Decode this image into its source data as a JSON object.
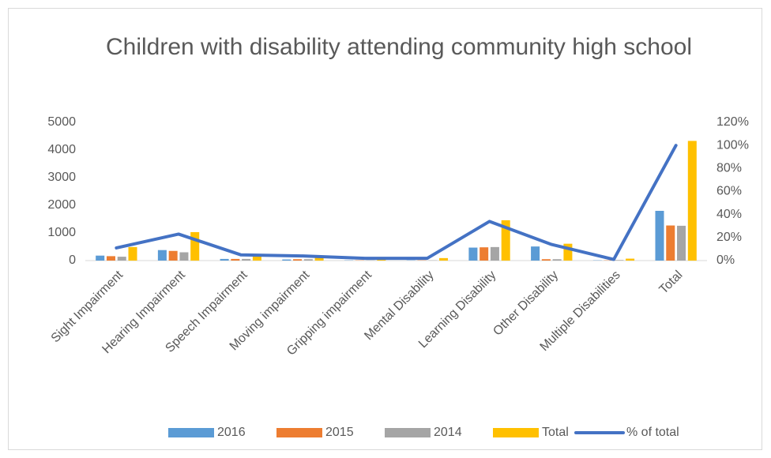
{
  "chart_data": {
    "type": "bar",
    "title": "Children with disability attending community high school",
    "categories": [
      "Sight Impairment",
      "Hearing Impairment",
      "Speech Impairment",
      "Moving impairment",
      "Gripping impairment",
      "Mental Disability",
      "Learning Disability",
      "Other Disability",
      "Multiple Disabilities",
      "Total"
    ],
    "series": [
      {
        "name": "2016",
        "color": "#5b9bd5",
        "values": [
          180,
          380,
          60,
          40,
          10,
          10,
          470,
          510,
          10,
          1800
        ]
      },
      {
        "name": "2015",
        "color": "#ed7d31",
        "values": [
          160,
          350,
          60,
          50,
          10,
          10,
          480,
          50,
          10,
          1270
        ]
      },
      {
        "name": "2014",
        "color": "#a5a5a5",
        "values": [
          140,
          300,
          60,
          50,
          10,
          10,
          490,
          50,
          20,
          1260
        ]
      },
      {
        "name": "Total",
        "color": "#ffc000",
        "values": [
          490,
          1030,
          170,
          130,
          30,
          90,
          1460,
          610,
          70,
          4330
        ]
      },
      {
        "name": "% of total",
        "color": "#4472c4",
        "type": "line",
        "axis": "y2",
        "values": [
          11,
          23,
          5,
          4,
          2,
          2,
          34,
          14,
          1,
          100
        ]
      }
    ],
    "ylim": [
      0,
      5000
    ],
    "yticks": [
      0,
      1000,
      2000,
      3000,
      4000,
      5000
    ],
    "y2lim": [
      0,
      120
    ],
    "y2ticks": [
      {
        "value": 0,
        "label": "0%"
      },
      {
        "value": 20,
        "label": "20%"
      },
      {
        "value": 40,
        "label": "40%"
      },
      {
        "value": 60,
        "label": "60%"
      },
      {
        "value": 80,
        "label": "80%"
      },
      {
        "value": 100,
        "label": "100%"
      },
      {
        "value": 120,
        "label": "120%"
      }
    ],
    "legend": "bottom"
  }
}
